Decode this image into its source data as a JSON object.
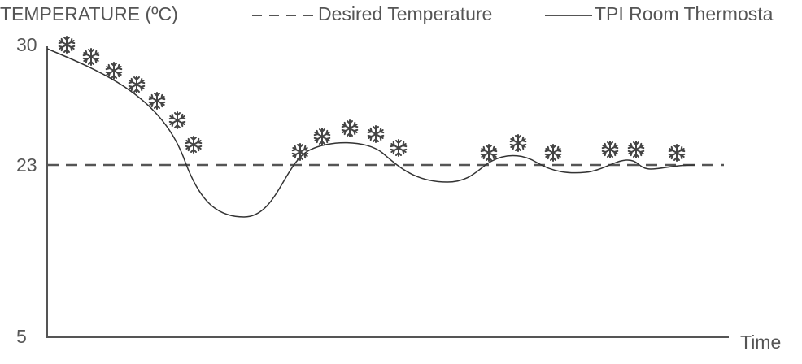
{
  "axis_title": "TEMPERATURE (ºC)",
  "legend": {
    "desired": "Desired Temperature",
    "thermostat": "TPI Room Thermosta"
  },
  "y_labels": {
    "top": "30",
    "middle": "23",
    "bottom": "5"
  },
  "x_label": "Time"
}
